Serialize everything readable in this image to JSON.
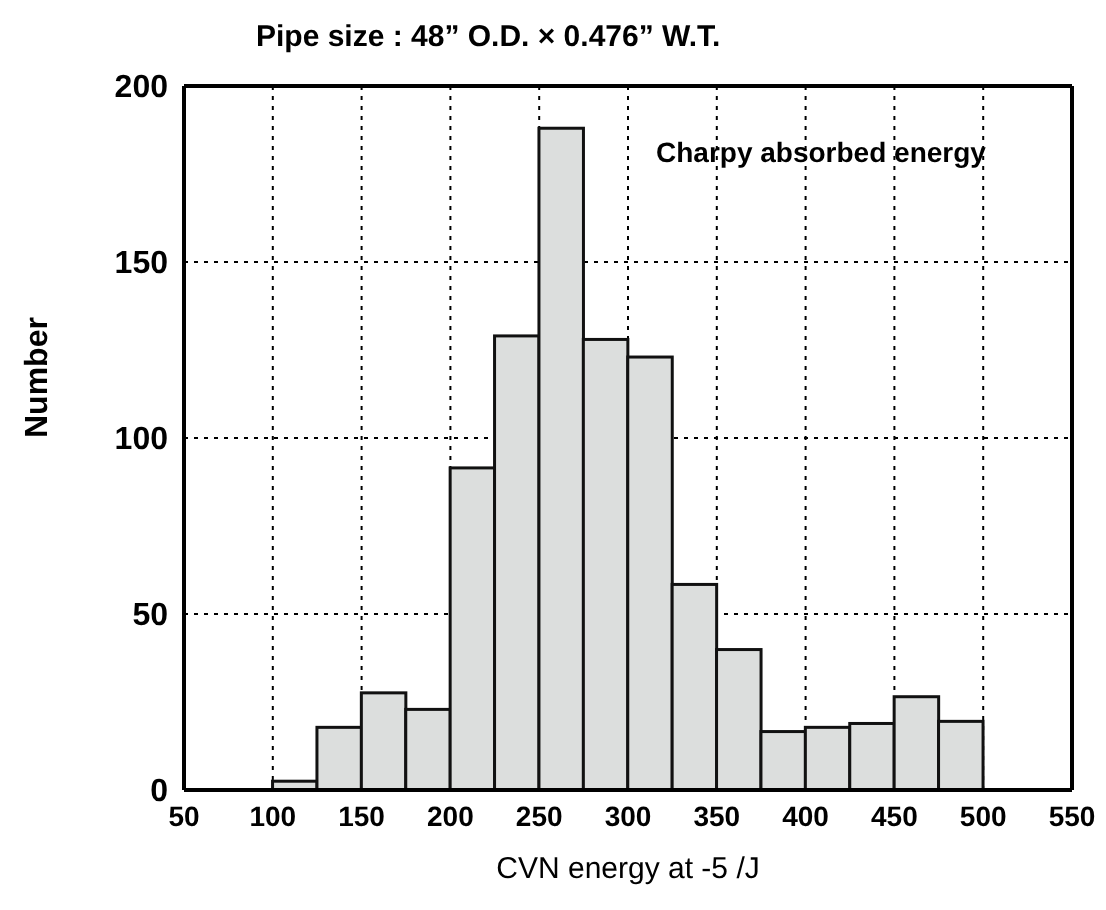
{
  "chart_data": {
    "type": "histogram",
    "title": "Pipe size : 48” O.D. × 0.476” W.T.",
    "xlabel": "CVN energy at -5 /J",
    "ylabel": "Number",
    "annotations": [
      "Charpy absorbed energy"
    ],
    "bins": [
      100,
      125,
      150,
      175,
      200,
      225,
      250,
      275,
      300,
      325,
      350,
      375,
      400,
      425,
      450,
      475,
      500
    ],
    "values": [
      2.5,
      17.8,
      27.6,
      22.9,
      91.5,
      129,
      188,
      128,
      123,
      58.4,
      39.9,
      16.6,
      17.8,
      18.9,
      26.5,
      19.5
    ],
    "color": "#dcdedd",
    "xlim": [
      50,
      550
    ],
    "xticks": [
      50,
      100,
      150,
      200,
      250,
      300,
      350,
      400,
      450,
      500,
      550
    ],
    "ylim": [
      0,
      200
    ],
    "yticks": [
      0,
      50,
      100,
      150,
      200
    ],
    "grid": true
  }
}
